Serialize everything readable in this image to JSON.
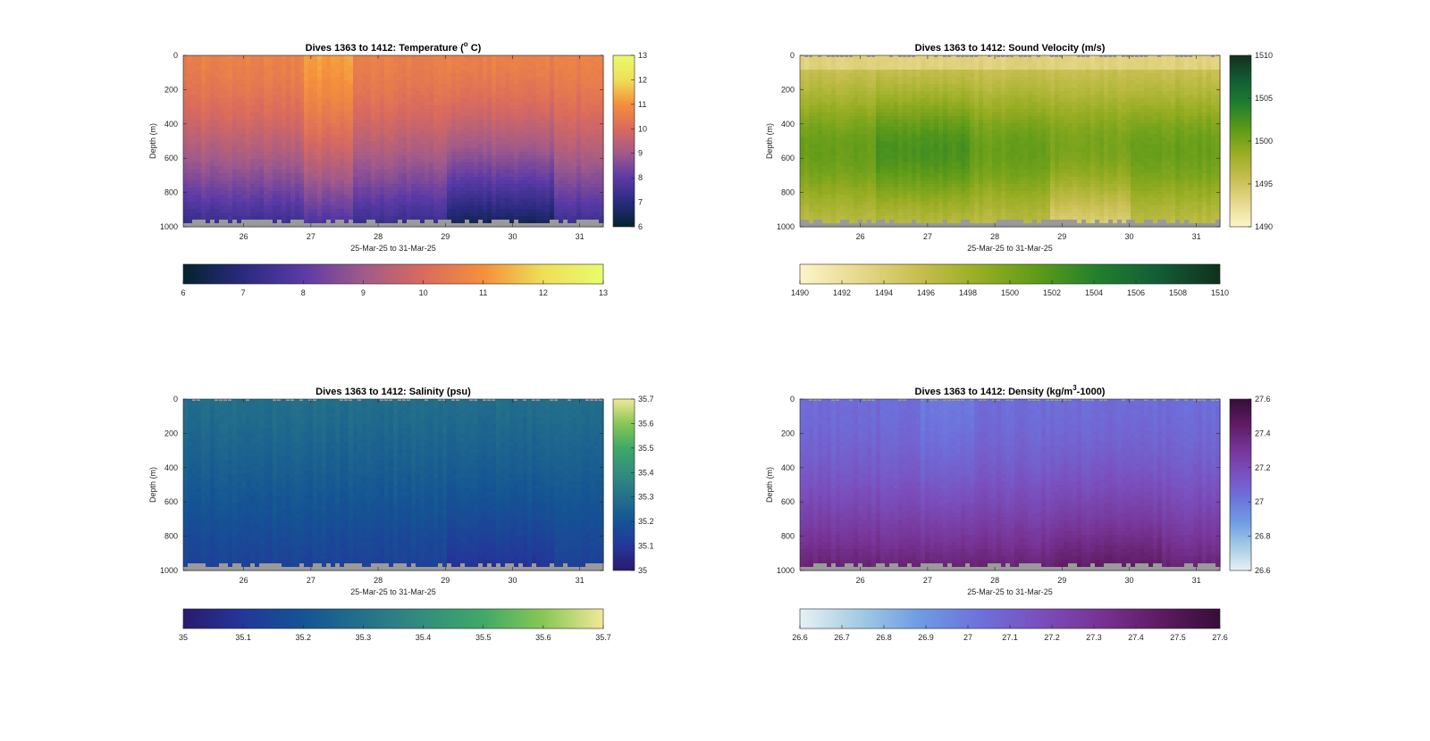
{
  "figure": {
    "background": "#ffffff"
  },
  "chart_data": [
    {
      "type": "heatmap",
      "variable": "temperature",
      "title_main": "Dives 1363 to 1412: Temperature (",
      "title_sup": "o",
      "title_end": " C)",
      "ylabel": "Depth (m)",
      "xlabel": "25-Mar-25 to 31-Mar-25",
      "x_ticks": [
        "26",
        "27",
        "28",
        "29",
        "30",
        "31"
      ],
      "x_tick_values": [
        26,
        27,
        28,
        29,
        30,
        31
      ],
      "xlim": [
        25.1,
        31.35
      ],
      "y_ticks": [
        "0",
        "200",
        "400",
        "600",
        "800",
        "1000"
      ],
      "y_tick_values": [
        0,
        200,
        400,
        600,
        800,
        1000
      ],
      "ylim": [
        0,
        1000
      ],
      "y_reversed": true,
      "colormap": "thermal",
      "colormap_stops": [
        "#04232e",
        "#2a2a80",
        "#5b3aa6",
        "#a05a8a",
        "#d96a5e",
        "#f58f3c",
        "#eedf57",
        "#e9fb6e"
      ],
      "clim": [
        6,
        13
      ],
      "cbar_right_ticks": [
        "6",
        "7",
        "8",
        "9",
        "10",
        "11",
        "12",
        "13"
      ],
      "cbar_right_values": [
        6,
        7,
        8,
        9,
        10,
        11,
        12,
        13
      ],
      "cbar_bottom_ticks": [
        "6",
        "7",
        "8",
        "9",
        "10",
        "11",
        "12",
        "13"
      ],
      "cbar_bottom_values": [
        6,
        7,
        8,
        9,
        10,
        11,
        12,
        13
      ],
      "surface_value": 10.6,
      "deep_value": 7.2,
      "warm_days": [
        27.0,
        27.5
      ],
      "cold_days": [
        29.0,
        30.5
      ]
    },
    {
      "type": "heatmap",
      "variable": "sound_velocity",
      "title_main": "Dives 1363 to 1412: Sound Velocity (m/s)",
      "title_sup": "",
      "title_end": "",
      "ylabel": "Depth (m)",
      "xlabel": "25-Mar-25 to 31-Mar-25",
      "x_ticks": [
        "26",
        "27",
        "28",
        "29",
        "30",
        "31"
      ],
      "x_tick_values": [
        26,
        27,
        28,
        29,
        30,
        31
      ],
      "xlim": [
        25.1,
        31.35
      ],
      "y_ticks": [
        "0",
        "200",
        "400",
        "600",
        "800",
        "1000"
      ],
      "y_tick_values": [
        0,
        200,
        400,
        600,
        800,
        1000
      ],
      "ylim": [
        0,
        1000
      ],
      "y_reversed": true,
      "colormap": "speed",
      "colormap_stops": [
        "#fdf5c9",
        "#e6d88b",
        "#c6be4e",
        "#97ad22",
        "#5c9a18",
        "#207e2e",
        "#125c35",
        "#11301c"
      ],
      "clim": [
        1490,
        1510
      ],
      "cbar_right_ticks": [
        "1490",
        "1495",
        "1500",
        "1505",
        "1510"
      ],
      "cbar_right_values": [
        1490,
        1495,
        1500,
        1505,
        1510
      ],
      "cbar_bottom_ticks": [
        "1490",
        "1492",
        "1494",
        "1496",
        "1498",
        "1500",
        "1502",
        "1504",
        "1506",
        "1508",
        "1510"
      ],
      "cbar_bottom_values": [
        1490,
        1492,
        1494,
        1496,
        1498,
        1500,
        1502,
        1504,
        1506,
        1508,
        1510
      ],
      "surface_value": 1494.5,
      "deep_value": 1497.5
    },
    {
      "type": "heatmap",
      "variable": "salinity",
      "title_main": "Dives 1363 to 1412: Salinity (psu)",
      "title_sup": "",
      "title_end": "",
      "ylabel": "Depth (m)",
      "xlabel": "25-Mar-25 to 31-Mar-25",
      "x_ticks": [
        "26",
        "27",
        "28",
        "29",
        "30",
        "31"
      ],
      "x_tick_values": [
        26,
        27,
        28,
        29,
        30,
        31
      ],
      "xlim": [
        25.1,
        31.35
      ],
      "y_ticks": [
        "0",
        "200",
        "400",
        "600",
        "800",
        "1000"
      ],
      "y_tick_values": [
        0,
        200,
        400,
        600,
        800,
        1000
      ],
      "ylim": [
        0,
        1000
      ],
      "y_reversed": true,
      "colormap": "haline",
      "colormap_stops": [
        "#2a1a6e",
        "#23379a",
        "#145494",
        "#24718a",
        "#338d7e",
        "#3fa967",
        "#88c755",
        "#f2e898"
      ],
      "clim": [
        35,
        35.7
      ],
      "cbar_right_ticks": [
        "35",
        "35.1",
        "35.2",
        "35.3",
        "35.4",
        "35.5",
        "35.6",
        "35.7"
      ],
      "cbar_right_values": [
        35,
        35.1,
        35.2,
        35.3,
        35.4,
        35.5,
        35.6,
        35.7
      ],
      "cbar_bottom_ticks": [
        "35",
        "35.1",
        "35.2",
        "35.3",
        "35.4",
        "35.5",
        "35.6",
        "35.7"
      ],
      "cbar_bottom_values": [
        35,
        35.1,
        35.2,
        35.3,
        35.4,
        35.5,
        35.6,
        35.7
      ],
      "surface_value": 35.29,
      "deep_value": 35.13
    },
    {
      "type": "heatmap",
      "variable": "density",
      "title_main": "Dives 1363 to 1412: Density (kg/m",
      "title_sup": "3",
      "title_end": "-1000)",
      "ylabel": "Depth (m)",
      "xlabel": "25-Mar-25 to 31-Mar-25",
      "x_ticks": [
        "26",
        "27",
        "28",
        "29",
        "30",
        "31"
      ],
      "x_tick_values": [
        26,
        27,
        28,
        29,
        30,
        31
      ],
      "xlim": [
        25.1,
        31.35
      ],
      "y_ticks": [
        "0",
        "200",
        "400",
        "600",
        "800",
        "1000"
      ],
      "y_tick_values": [
        0,
        200,
        400,
        600,
        800,
        1000
      ],
      "ylim": [
        0,
        1000
      ],
      "y_reversed": true,
      "colormap": "dense",
      "colormap_stops": [
        "#e7f1f3",
        "#a3cbe3",
        "#6e9be3",
        "#6d71dc",
        "#7a4fbd",
        "#773394",
        "#5e1b62",
        "#360d36"
      ],
      "clim": [
        26.6,
        27.6
      ],
      "cbar_right_ticks": [
        "26.6",
        "26.8",
        "27",
        "27.2",
        "27.4",
        "27.6"
      ],
      "cbar_right_values": [
        26.6,
        26.8,
        27,
        27.2,
        27.4,
        27.6
      ],
      "cbar_bottom_ticks": [
        "26.6",
        "26.7",
        "26.8",
        "26.9",
        "27",
        "27.1",
        "27.2",
        "27.3",
        "27.4",
        "27.5",
        "27.6"
      ],
      "cbar_bottom_values": [
        26.6,
        26.7,
        26.8,
        26.9,
        27,
        27.1,
        27.2,
        27.3,
        27.4,
        27.5,
        27.6
      ],
      "surface_value": 27.05,
      "deep_value": 27.42
    }
  ]
}
